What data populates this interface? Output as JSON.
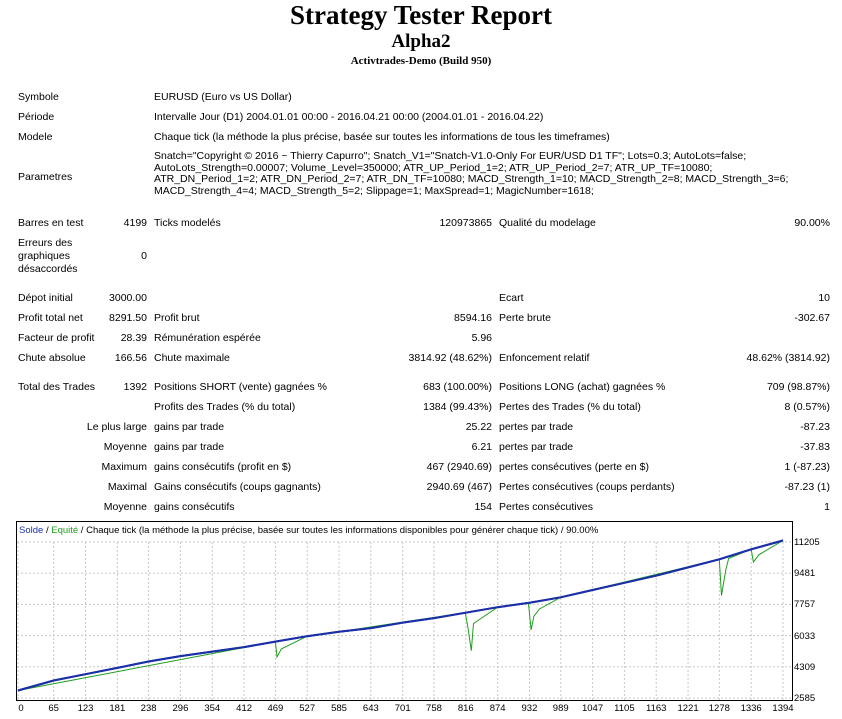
{
  "header": {
    "title": "Strategy Tester Report",
    "expert": "Alpha2",
    "server": "Activtrades-Demo (Build 950)"
  },
  "info": {
    "symbol_label": "Symbole",
    "symbol_value": "EURUSD (Euro vs US Dollar)",
    "period_label": "Période",
    "period_value": "Intervalle Jour (D1) 2004.01.01 00:00 - 2016.04.21 00:00 (2004.01.01 - 2016.04.22)",
    "model_label": "Modele",
    "model_value": "Chaque tick (la méthode la plus précise, basée sur toutes les informations de tous les timeframes)",
    "params_label": "Parametres",
    "params_value": "Snatch=\"Copyright © 2016 ~ Thierry Capurro\"; Snatch_V1=\"Snatch-V1.0-Only For EUR/USD D1 TF\"; Lots=0.3; AutoLots=false;\nAutoLots_Strength=0.00007; Volume_Level=350000; ATR_UP_Period_1=2; ATR_UP_Period_2=7; ATR_UP_TF=10080;\nATR_DN_Period_1=2; ATR_DN_Period_2=7; ATR_DN_TF=10080; MACD_Strength_1=10; MACD_Strength_2=8; MACD_Strength_3=6;\nMACD_Strength_4=4; MACD_Strength_5=2; Slippage=1; MaxSpread=1; MagicNumber=1618;"
  },
  "stats": {
    "bars_label": "Barres en test",
    "bars_value": "4199",
    "ticks_label": "Ticks modelés",
    "ticks_value": "120973865",
    "quality_label": "Qualité du modelage",
    "quality_value": "90.00%",
    "errors_label": "Erreurs des graphiques désaccordés",
    "errors_value": "0",
    "deposit_label": "Dépot initial",
    "deposit_value": "3000.00",
    "spread_label": "Ecart",
    "spread_value": "10",
    "net_profit_label": "Profit total net",
    "net_profit_value": "8291.50",
    "gross_profit_label": "Profit brut",
    "gross_profit_value": "8594.16",
    "gross_loss_label": "Perte brute",
    "gross_loss_value": "-302.67",
    "profit_factor_label": "Facteur de profit",
    "profit_factor_value": "28.39",
    "expected_payoff_label": "Rémunération espérée",
    "expected_payoff_value": "5.96",
    "abs_dd_label": "Chute absolue",
    "abs_dd_value": "166.56",
    "max_dd_label": "Chute maximale",
    "max_dd_value": "3814.92 (48.62%)",
    "rel_dd_label": "Enfoncement relatif",
    "rel_dd_value": "48.62% (3814.92)",
    "total_trades_label": "Total des Trades",
    "total_trades_value": "1392",
    "short_label": "Positions SHORT (vente) gagnées %",
    "short_value": "683 (100.00%)",
    "long_label": "Positions LONG (achat) gagnées %",
    "long_value": "709 (98.87%)",
    "profit_trades_label": "Profits des Trades (% du total)",
    "profit_trades_value": "1384 (99.43%)",
    "loss_trades_label": "Pertes des Trades (% du total)",
    "loss_trades_value": "8 (0.57%)",
    "largest_label": "Le plus large",
    "largest_profit_label": "gains par trade",
    "largest_profit_value": "25.22",
    "largest_loss_label": "pertes par trade",
    "largest_loss_value": "-87.23",
    "average_label": "Moyenne",
    "average_profit_label": "gains par trade",
    "average_profit_value": "6.21",
    "average_loss_label": "pertes par trade",
    "average_loss_value": "-37.83",
    "maximum_label": "Maximum",
    "max_cons_wins_label": "gains consécutifs (profit en $)",
    "max_cons_wins_value": "467 (2940.69)",
    "max_cons_losses_label": "pertes consécutives (perte en $)",
    "max_cons_losses_value": "1 (-87.23)",
    "maximal_label": "Maximal",
    "maximal_cons_profit_label": "Gains consécutifs (coups gagnants)",
    "maximal_cons_profit_value": "2940.69 (467)",
    "maximal_cons_loss_label": "Pertes consécutives (coups perdants)",
    "maximal_cons_loss_value": "-87.23 (1)",
    "avg_cons_label": "Moyenne",
    "avg_cons_wins_label": "gains consécutifs",
    "avg_cons_wins_value": "154",
    "avg_cons_losses_label": "Pertes consécutives",
    "avg_cons_losses_value": "1"
  },
  "chart_legend": {
    "balance": "Solde",
    "sep1": " / ",
    "equity": "Equité",
    "rest": " / Chaque tick (la méthode la plus précise, basée sur toutes les informations disponibles pour générer chaque tick) / 90.00%"
  },
  "colors": {
    "balance": "#1a2fa8",
    "equity": "#1f9d1f",
    "grid": "#c8c8c8"
  },
  "chart_data": {
    "type": "line",
    "x_ticks": [
      "0",
      "65",
      "123",
      "181",
      "238",
      "296",
      "354",
      "412",
      "469",
      "527",
      "585",
      "643",
      "701",
      "758",
      "816",
      "874",
      "932",
      "989",
      "1047",
      "1105",
      "1163",
      "1221",
      "1278",
      "1336",
      "1394"
    ],
    "y_ticks": [
      "11205",
      "9481",
      "7757",
      "6033",
      "4309",
      "2585"
    ],
    "xlim": [
      0,
      1394
    ],
    "ylim": [
      2585,
      11205
    ],
    "grid": true,
    "series": [
      {
        "name": "Solde",
        "x": [
          0,
          65,
          123,
          181,
          238,
          296,
          354,
          412,
          469,
          527,
          585,
          643,
          701,
          758,
          816,
          874,
          932,
          989,
          1047,
          1105,
          1163,
          1221,
          1278,
          1336,
          1394
        ],
        "values": [
          3000,
          3550,
          3900,
          4250,
          4600,
          4900,
          5150,
          5400,
          5700,
          6000,
          6250,
          6450,
          6750,
          7000,
          7300,
          7600,
          7850,
          8150,
          8550,
          8950,
          9350,
          9800,
          10250,
          10800,
          11290
        ]
      },
      {
        "name": "Equité",
        "x": [
          0,
          469,
          472,
          480,
          527,
          585,
          815,
          820,
          826,
          830,
          874,
          930,
          935,
          940,
          950,
          989,
          1278,
          1282,
          1290,
          1295,
          1336,
          1340,
          1350,
          1394
        ],
        "values": [
          3000,
          5700,
          4850,
          5300,
          6000,
          6250,
          7300,
          6450,
          5200,
          6700,
          7600,
          7850,
          6350,
          7100,
          7500,
          8150,
          10250,
          8250,
          9700,
          10300,
          10800,
          10100,
          10500,
          11290
        ]
      }
    ]
  }
}
